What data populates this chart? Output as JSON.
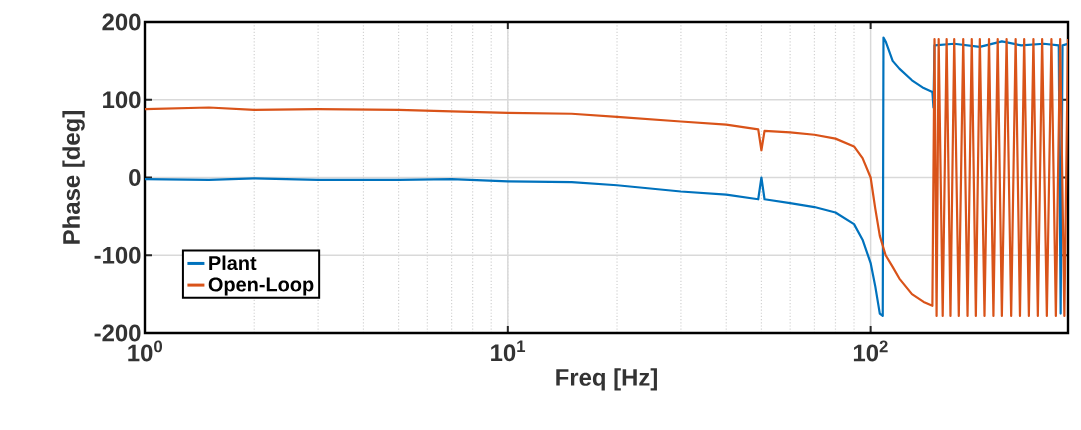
{
  "chart_data": {
    "type": "line",
    "xlabel": "Freq [Hz]",
    "ylabel": "Phase [deg]",
    "log": "x",
    "grid": true,
    "legend": "bottom left",
    "xlim": [
      1,
      350
    ],
    "ylim": [
      -200,
      200
    ],
    "xticks": [
      {
        "value": 1,
        "label": "10$^{0}$"
      },
      {
        "value": 10,
        "label": "10$^{1}$"
      },
      {
        "value": 100,
        "label": "10$^{2}$"
      }
    ],
    "yticks": [
      -200,
      -100,
      0,
      100,
      200
    ],
    "series": [
      {
        "name": "Plant",
        "color": "#0072bd",
        "x": [
          1,
          1.5,
          2,
          3,
          5,
          7,
          10,
          15,
          20,
          30,
          40,
          49,
          50,
          51,
          60,
          70,
          80,
          90,
          95,
          100,
          103,
          106,
          108,
          108.5,
          110,
          115,
          120,
          130,
          140,
          148,
          149,
          150,
          170,
          200,
          230,
          260,
          300,
          330,
          334,
          338,
          350
        ],
        "values": [
          -2,
          -3,
          -1,
          -3,
          -3,
          -2,
          -5,
          -6,
          -10,
          -18,
          -22,
          -28,
          0,
          -28,
          -33,
          -38,
          -45,
          -60,
          -80,
          -110,
          -140,
          -175,
          -178,
          180,
          175,
          150,
          140,
          125,
          115,
          110,
          90,
          170,
          172,
          168,
          175,
          170,
          172,
          170,
          -175,
          170,
          172
        ]
      },
      {
        "name": "Open-Loop",
        "color": "#d95319",
        "x": [
          1,
          1.5,
          2,
          3,
          5,
          7,
          10,
          15,
          20,
          30,
          40,
          49,
          50,
          51,
          60,
          70,
          80,
          90,
          95,
          100,
          103,
          106,
          110,
          115,
          120,
          130,
          140,
          148,
          150,
          152,
          154,
          158,
          162,
          166,
          170,
          175,
          180,
          185,
          190,
          195,
          200,
          206,
          212,
          218,
          224,
          230,
          237,
          244,
          251,
          258,
          265,
          273,
          281,
          289,
          297,
          306,
          315,
          324,
          333,
          342,
          350
        ],
        "values": [
          88,
          90,
          87,
          88,
          87,
          85,
          83,
          82,
          78,
          72,
          68,
          62,
          35,
          60,
          58,
          55,
          50,
          40,
          25,
          0,
          -40,
          -75,
          -100,
          -115,
          -130,
          -150,
          -160,
          -165,
          178,
          -178,
          178,
          -178,
          178,
          -178,
          178,
          -178,
          178,
          -178,
          178,
          -178,
          178,
          -178,
          178,
          -178,
          178,
          -178,
          178,
          -178,
          178,
          -178,
          178,
          -178,
          178,
          -178,
          178,
          -178,
          178,
          -178,
          178,
          -178,
          178
        ]
      }
    ]
  }
}
